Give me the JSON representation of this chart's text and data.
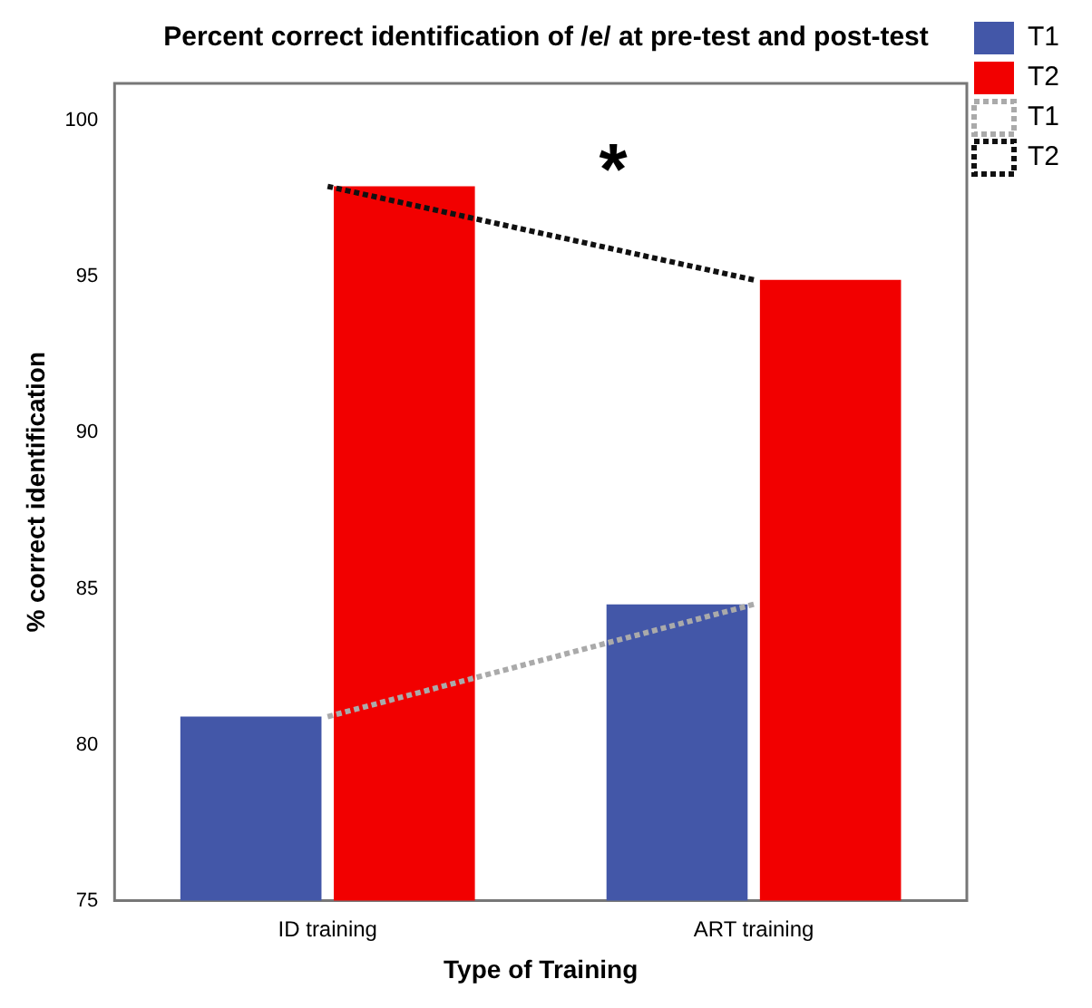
{
  "chart_data": {
    "type": "bar",
    "title": "Percent correct identification of /e/ at pre-test and post-test",
    "xlabel": "Type of Training",
    "ylabel": "% correct identification",
    "categories": [
      "ID training",
      "ART training"
    ],
    "series": [
      {
        "name": "T1",
        "color": "#4357a8",
        "values": [
          80.9,
          84.5
        ]
      },
      {
        "name": "T2",
        "color": "#f20000",
        "values": [
          97.9,
          94.9
        ]
      },
      {
        "name": "T1",
        "type": "line",
        "color": "#aaaaaa",
        "line_style": "dotted",
        "values": [
          80.9,
          84.5
        ]
      },
      {
        "name": "T2",
        "type": "line",
        "color": "#111111",
        "line_style": "dotted",
        "values": [
          97.9,
          94.9
        ]
      }
    ],
    "ylim": [
      75,
      101.2
    ],
    "yticks": [
      75,
      80,
      85,
      90,
      95,
      100
    ],
    "grid": false,
    "legend": "top right",
    "marker": "none",
    "annotations": [
      "*"
    ]
  }
}
